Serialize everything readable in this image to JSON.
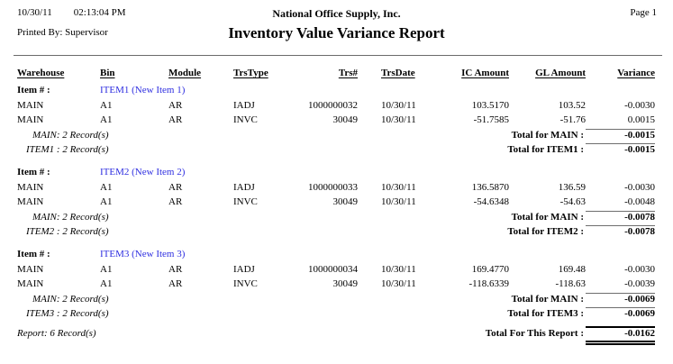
{
  "header": {
    "date": "10/30/11",
    "time": "02:13:04 PM",
    "printed_by": "Printed By: Supervisor",
    "company": "National Office Supply, Inc.",
    "title": "Inventory Value Variance Report",
    "page_label": "Page 1"
  },
  "table": {
    "columns": [
      "Warehouse",
      "Bin",
      "Module",
      "TrsType",
      "Trs#",
      "TrsDate",
      "IC Amount",
      "GL Amount",
      "Variance"
    ],
    "item_label": "Item # :",
    "groups": [
      {
        "item": "ITEM1 (New Item 1)",
        "rows": [
          {
            "warehouse": "MAIN",
            "bin": "A1",
            "module": "AR",
            "trstype": "IADJ",
            "trsnum": "1000000032",
            "trsdate": "10/30/11",
            "ic_amount": "103.5170",
            "gl_amount": "103.52",
            "variance": "-0.0030"
          },
          {
            "warehouse": "MAIN",
            "bin": "A1",
            "module": "AR",
            "trstype": "INVC",
            "trsnum": "30049",
            "trsdate": "10/30/11",
            "ic_amount": "-51.7585",
            "gl_amount": "-51.76",
            "variance": "0.0015"
          }
        ],
        "warehouse_count": "MAIN: 2 Record(s)",
        "warehouse_total_label": "Total for MAIN :",
        "warehouse_total": "-0.0015",
        "item_count": "ITEM1 : 2 Record(s)",
        "item_total_label": "Total for ITEM1 :",
        "item_total": "-0.0015"
      },
      {
        "item": "ITEM2 (New Item 2)",
        "rows": [
          {
            "warehouse": "MAIN",
            "bin": "A1",
            "module": "AR",
            "trstype": "IADJ",
            "trsnum": "1000000033",
            "trsdate": "10/30/11",
            "ic_amount": "136.5870",
            "gl_amount": "136.59",
            "variance": "-0.0030"
          },
          {
            "warehouse": "MAIN",
            "bin": "A1",
            "module": "AR",
            "trstype": "INVC",
            "trsnum": "30049",
            "trsdate": "10/30/11",
            "ic_amount": "-54.6348",
            "gl_amount": "-54.63",
            "variance": "-0.0048"
          }
        ],
        "warehouse_count": "MAIN: 2 Record(s)",
        "warehouse_total_label": "Total for MAIN :",
        "warehouse_total": "-0.0078",
        "item_count": "ITEM2 : 2 Record(s)",
        "item_total_label": "Total for ITEM2 :",
        "item_total": "-0.0078"
      },
      {
        "item": "ITEM3 (New Item 3)",
        "rows": [
          {
            "warehouse": "MAIN",
            "bin": "A1",
            "module": "AR",
            "trstype": "IADJ",
            "trsnum": "1000000034",
            "trsdate": "10/30/11",
            "ic_amount": "169.4770",
            "gl_amount": "169.48",
            "variance": "-0.0030"
          },
          {
            "warehouse": "MAIN",
            "bin": "A1",
            "module": "AR",
            "trstype": "INVC",
            "trsnum": "30049",
            "trsdate": "10/30/11",
            "ic_amount": "-118.6339",
            "gl_amount": "-118.63",
            "variance": "-0.0039"
          }
        ],
        "warehouse_count": "MAIN: 2 Record(s)",
        "warehouse_total_label": "Total for MAIN :",
        "warehouse_total": "-0.0069",
        "item_count": "ITEM3 : 2 Record(s)",
        "item_total_label": "Total for ITEM3 :",
        "item_total": "-0.0069"
      }
    ],
    "report_count": "Report: 6 Record(s)",
    "report_total_label": "Total For This Report :",
    "report_total": "-0.0162"
  },
  "colors": {
    "item_blue": "#2e2ee0"
  }
}
